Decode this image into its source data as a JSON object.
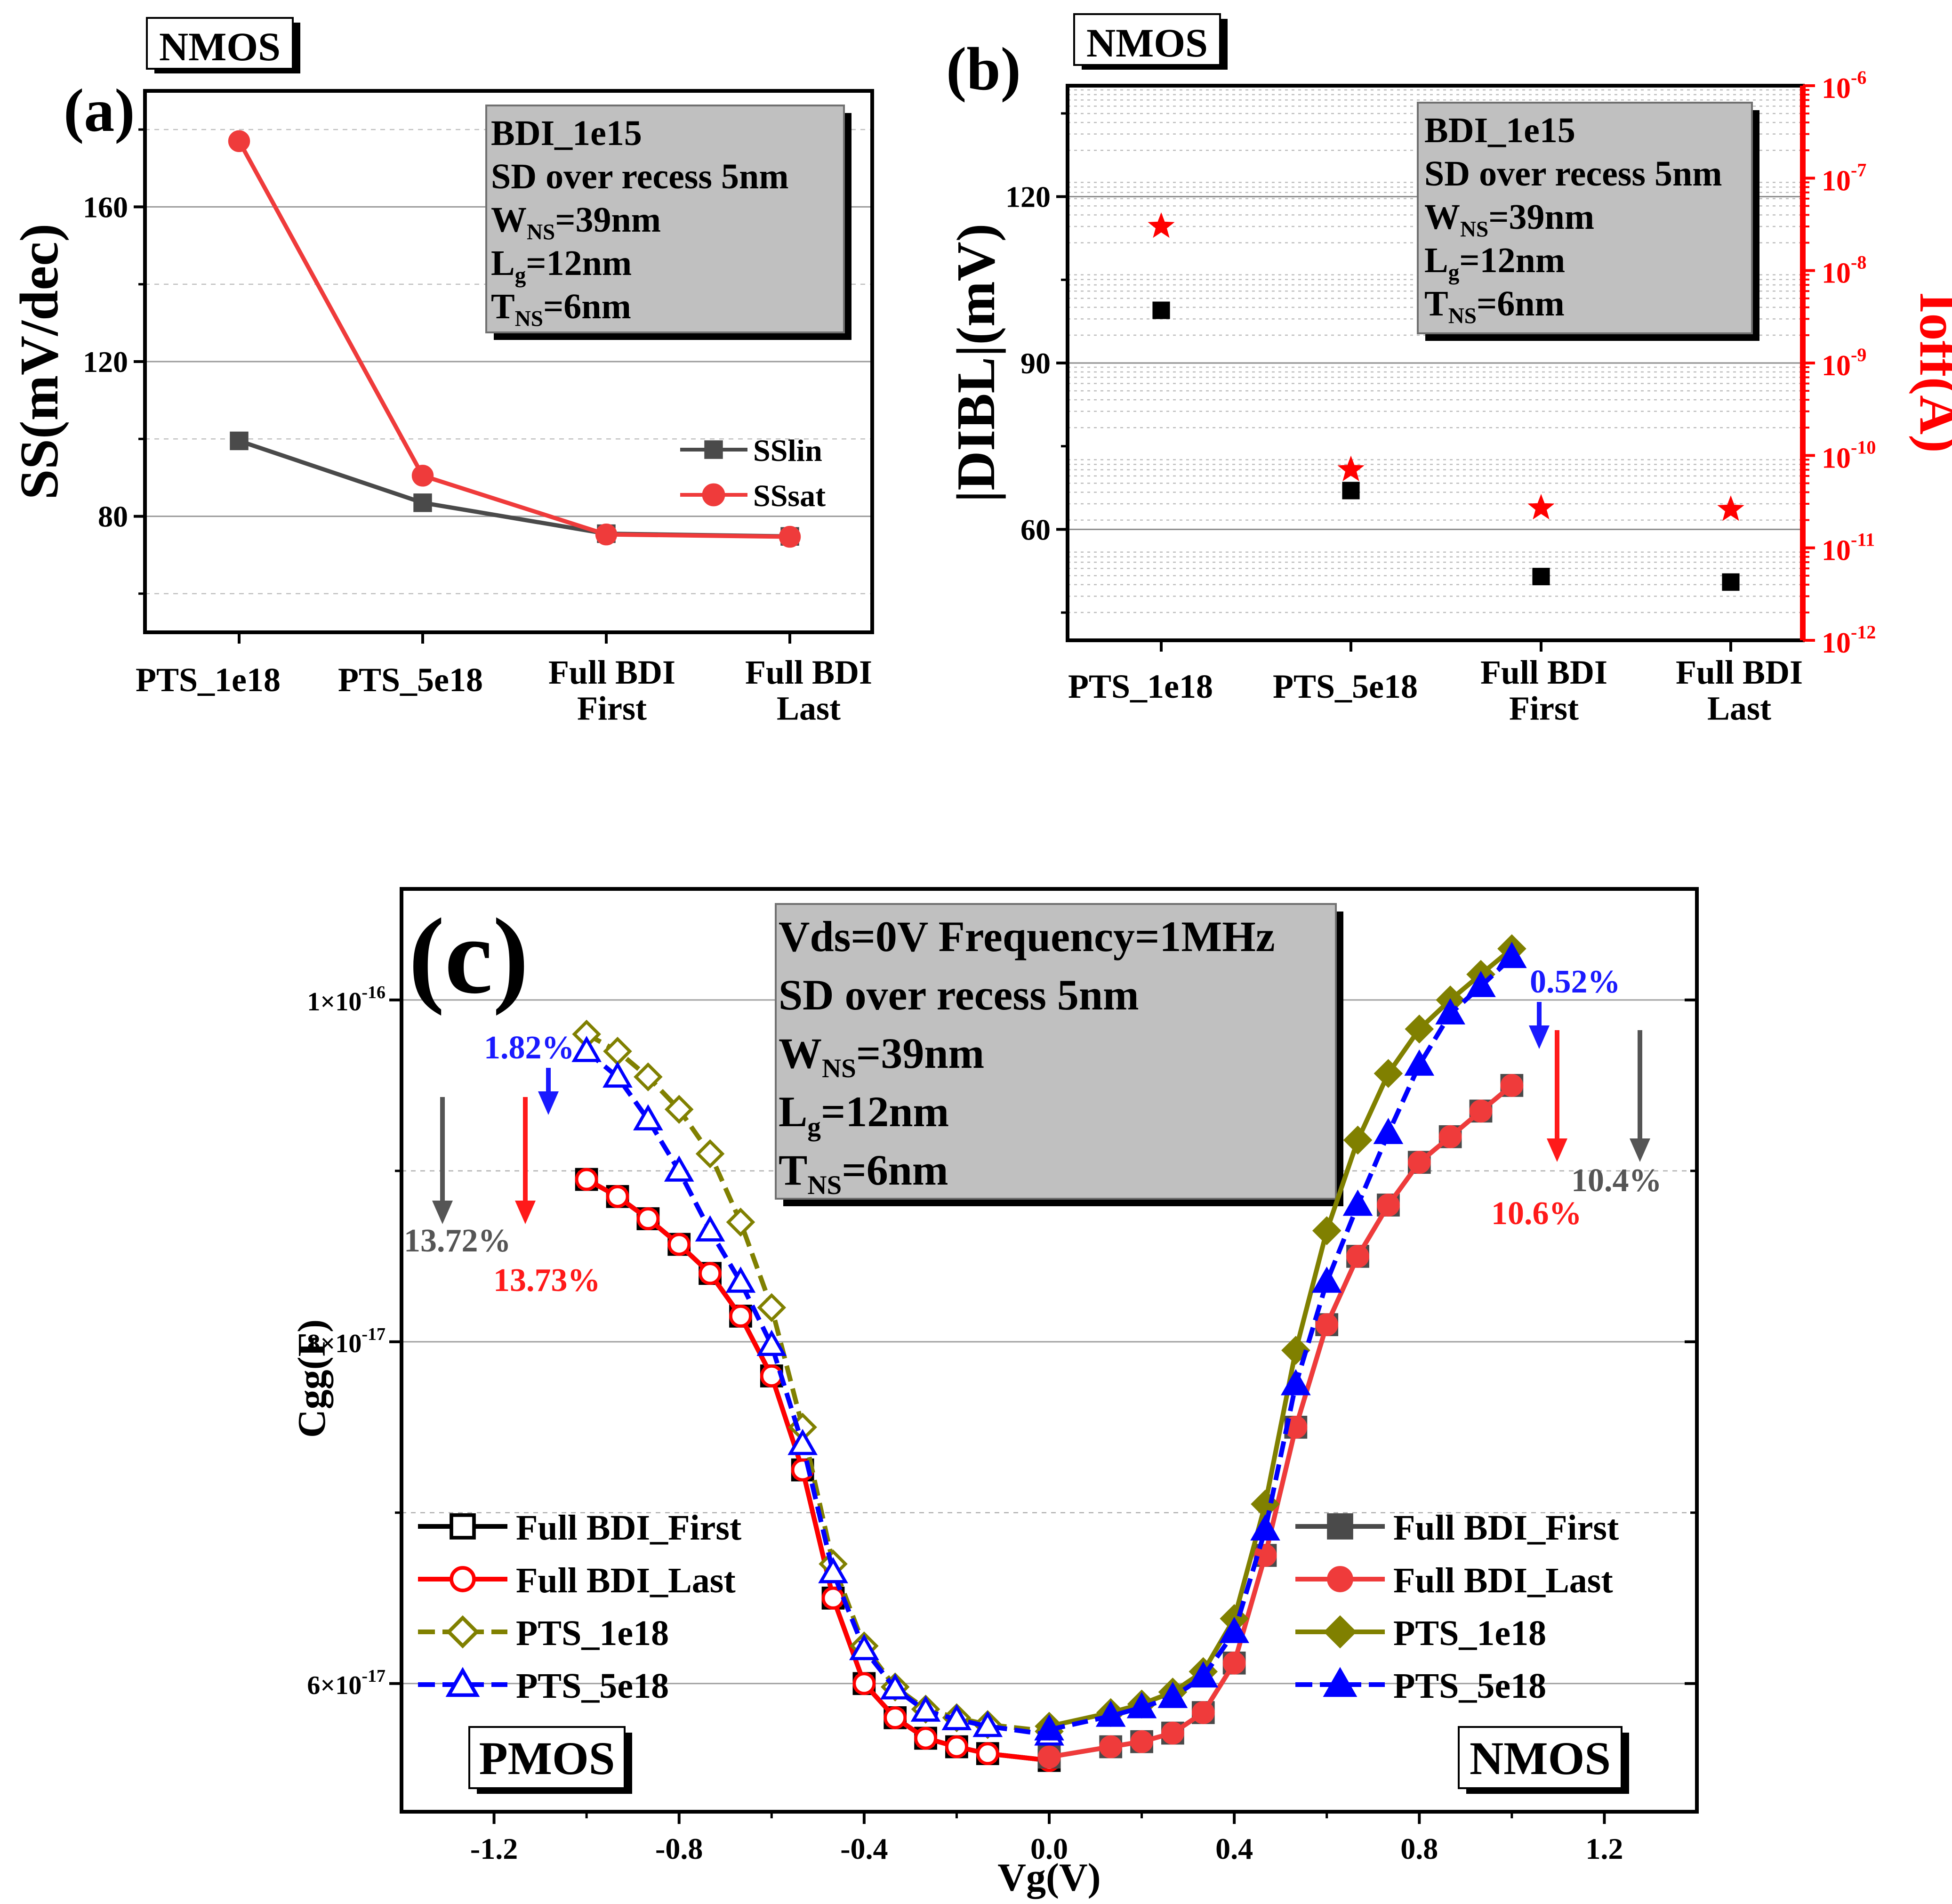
{
  "figure": {
    "panel_a": {
      "panel_label": "(a)",
      "device_tag": "NMOS",
      "info_lines": [
        {
          "main": "BDI_1e15",
          "sub": "",
          "rest": ""
        },
        {
          "main": "SD over recess 5nm",
          "sub": "",
          "rest": ""
        },
        {
          "main": "W",
          "sub": "NS",
          "rest": "=39nm"
        },
        {
          "main": "L",
          "sub": "g",
          "rest": "=12nm"
        },
        {
          "main": "T",
          "sub": "NS",
          "rest": "=6nm"
        }
      ]
    },
    "panel_b": {
      "panel_label": "(b)",
      "device_tag": "NMOS",
      "info_lines": [
        {
          "main": "BDI_1e15",
          "sub": "",
          "rest": ""
        },
        {
          "main": "SD over recess 5nm",
          "sub": "",
          "rest": ""
        },
        {
          "main": "W",
          "sub": "NS",
          "rest": "=39nm"
        },
        {
          "main": "L",
          "sub": "g",
          "rest": "=12nm"
        },
        {
          "main": "T",
          "sub": "NS",
          "rest": "=6nm"
        }
      ]
    },
    "panel_c": {
      "panel_label": "(c)",
      "left_tag": "PMOS",
      "right_tag": "NMOS",
      "info_lines": [
        {
          "main": "Vds=0V  Frequency=1MHz",
          "sub": "",
          "rest": ""
        },
        {
          "main": "SD over recess 5nm",
          "sub": "",
          "rest": ""
        },
        {
          "main": "W",
          "sub": "NS",
          "rest": "=39nm"
        },
        {
          "main": "L",
          "sub": "g",
          "rest": "=12nm"
        },
        {
          "main": "T",
          "sub": "NS",
          "rest": "=6nm"
        }
      ],
      "annotations": [
        {
          "text": "1.82%",
          "color": "#1a1aff"
        },
        {
          "text": "13.72%",
          "color": "#555555"
        },
        {
          "text": "13.73%",
          "color": "#ff1a1a"
        },
        {
          "text": "0.52%",
          "color": "#1a1aff"
        },
        {
          "text": "10.4%",
          "color": "#555555"
        },
        {
          "text": "10.6%",
          "color": "#ff1a1a"
        }
      ]
    }
  },
  "chart_data": [
    {
      "type": "line",
      "categories": [
        "PTS_1e18",
        "PTS_5e18",
        "Full BDI\nFirst",
        "Full BDI\nLast"
      ],
      "ylabel": "SS(mV/dec)",
      "ylim": [
        50,
        190
      ],
      "yticks": [
        80,
        120,
        160
      ],
      "grid": true,
      "legend_position": "right",
      "series": [
        {
          "name": "SSlin",
          "values": [
            99.5,
            83.5,
            75.5,
            74.8
          ],
          "color": "#4a4a4a",
          "marker": "square"
        },
        {
          "name": "SSsat",
          "values": [
            177,
            90.5,
            75.3,
            74.7
          ],
          "color": "#ef3b3b",
          "marker": "circle"
        }
      ]
    },
    {
      "type": "scatter",
      "categories": [
        "PTS_1e18",
        "PTS_5e18",
        "Full BDI\nFirst",
        "Full BDI\nLast"
      ],
      "ylabel": "|DIBL|(mV)",
      "ylim": [
        40,
        140
      ],
      "yticks": [
        60,
        90,
        120
      ],
      "y2label": "Ioff(A)",
      "y2scale": "log",
      "y2lim": [
        1e-12,
        1e-06
      ],
      "y2ticks": [
        {
          "value": 1e-12,
          "base": "10",
          "exp": "-12"
        },
        {
          "value": 1e-11,
          "base": "10",
          "exp": "-11"
        },
        {
          "value": 1e-10,
          "base": "10",
          "exp": "-10"
        },
        {
          "value": 1e-09,
          "base": "10",
          "exp": "-9"
        },
        {
          "value": 1e-08,
          "base": "10",
          "exp": "-8"
        },
        {
          "value": 1e-07,
          "base": "10",
          "exp": "-7"
        },
        {
          "value": 1e-06,
          "base": "10",
          "exp": "-6"
        }
      ],
      "grid": true,
      "series": [
        {
          "axis": "left",
          "values": [
            99.5,
            67,
            51.5,
            50.5
          ],
          "color": "#000000",
          "marker": "square"
        },
        {
          "axis": "right",
          "values": [
            3e-08,
            7e-11,
            2.7e-11,
            2.6e-11
          ],
          "color": "#ff0000",
          "marker": "star"
        }
      ]
    },
    {
      "type": "line",
      "xlabel": "Vg(V)",
      "ylabel": "Cgg(F)",
      "xlim": [
        -1.4,
        1.4
      ],
      "xticks": [
        "-1.2",
        "-0.8",
        "-0.4",
        "0.0",
        "0.4",
        "0.8",
        "1.2"
      ],
      "ylim": [
        5.25e-17,
        1.065e-16
      ],
      "yticks": [
        {
          "value": 6e-17,
          "mant": "6×10",
          "exp": "-17"
        },
        {
          "value": 8e-17,
          "mant": "8×10",
          "exp": "-17"
        },
        {
          "value": 1e-16,
          "mant": "1×10",
          "exp": "-16"
        }
      ],
      "grid": true,
      "legend_left_position": "lower-left",
      "legend_right_position": "lower-right",
      "legend_left": [
        {
          "name": "Full BDI_First",
          "color": "#000000",
          "marker": "square",
          "filled": false,
          "dash": false
        },
        {
          "name": "Full BDI_Last",
          "color": "#ff0000",
          "marker": "circle",
          "filled": false,
          "dash": false
        },
        {
          "name": "PTS_1e18",
          "color": "#808000",
          "marker": "diamond",
          "filled": false,
          "dash": true
        },
        {
          "name": "PTS_5e18",
          "color": "#0000ff",
          "marker": "triangle",
          "filled": false,
          "dash": true
        }
      ],
      "legend_right": [
        {
          "name": "Full BDI_First",
          "color": "#4a4a4a",
          "marker": "square",
          "filled": true,
          "dash": false
        },
        {
          "name": "Full BDI_Last",
          "color": "#ef3b3b",
          "marker": "circle",
          "filled": true,
          "dash": false
        },
        {
          "name": "PTS_1e18",
          "color": "#808000",
          "marker": "diamond",
          "filled": true,
          "dash": false
        },
        {
          "name": "PTS_5e18",
          "color": "#0000ff",
          "marker": "triangle",
          "filled": true,
          "dash": true
        }
      ],
      "series": [
        {
          "name": "Full BDI_First",
          "side": "PMOS",
          "color": "#000000",
          "marker": "square",
          "filled": false,
          "dash": false,
          "x": [
            -1.0,
            -0.933,
            -0.867,
            -0.8,
            -0.733,
            -0.667,
            -0.6,
            -0.533,
            -0.467,
            -0.4,
            -0.333,
            -0.267,
            -0.2,
            -0.133,
            0.0
          ],
          "y": [
            8.95e-17,
            8.85e-17,
            8.72e-17,
            8.57e-17,
            8.4e-17,
            8.15e-17,
            7.8e-17,
            7.25e-17,
            6.5e-17,
            6e-17,
            5.8e-17,
            5.68e-17,
            5.63e-17,
            5.59e-17,
            5.55e-17
          ]
        },
        {
          "name": "Full BDI_Last",
          "side": "PMOS",
          "color": "#ff0000",
          "marker": "circle",
          "filled": false,
          "dash": false,
          "x": [
            -1.0,
            -0.933,
            -0.867,
            -0.8,
            -0.733,
            -0.667,
            -0.6,
            -0.533,
            -0.467,
            -0.4,
            -0.333,
            -0.267,
            -0.2,
            -0.133,
            0.0
          ],
          "y": [
            8.95e-17,
            8.85e-17,
            8.72e-17,
            8.57e-17,
            8.4e-17,
            8.15e-17,
            7.8e-17,
            7.25e-17,
            6.5e-17,
            6e-17,
            5.8e-17,
            5.68e-17,
            5.63e-17,
            5.59e-17,
            5.55e-17
          ]
        },
        {
          "name": "PTS_1e18",
          "side": "PMOS",
          "color": "#808000",
          "marker": "diamond",
          "filled": false,
          "dash": true,
          "x": [
            -1.0,
            -0.933,
            -0.867,
            -0.8,
            -0.733,
            -0.667,
            -0.6,
            -0.533,
            -0.467,
            -0.4,
            -0.333,
            -0.267,
            -0.2,
            -0.133,
            0.0
          ],
          "y": [
            9.8e-17,
            9.7e-17,
            9.55e-17,
            9.36e-17,
            9.1e-17,
            8.7e-17,
            8.2e-17,
            7.5e-17,
            6.7e-17,
            6.22e-17,
            5.98e-17,
            5.85e-17,
            5.8e-17,
            5.76e-17,
            5.72e-17
          ]
        },
        {
          "name": "PTS_5e18",
          "side": "PMOS",
          "color": "#0000ff",
          "marker": "triangle",
          "filled": false,
          "dash": true,
          "x": [
            -1.0,
            -0.933,
            -0.867,
            -0.8,
            -0.733,
            -0.667,
            -0.6,
            -0.533,
            -0.467,
            -0.4,
            -0.333,
            -0.267,
            -0.2,
            -0.133,
            0.0
          ],
          "y": [
            9.7e-17,
            9.55e-17,
            9.3e-17,
            9e-17,
            8.65e-17,
            8.35e-17,
            7.98e-17,
            7.4e-17,
            6.65e-17,
            6.2e-17,
            5.97e-17,
            5.84e-17,
            5.79e-17,
            5.75e-17,
            5.7e-17
          ]
        },
        {
          "name": "Full BDI_First",
          "side": "NMOS",
          "color": "#4a4a4a",
          "marker": "square",
          "filled": true,
          "dash": false,
          "x": [
            0.0,
            0.133,
            0.2,
            0.267,
            0.333,
            0.4,
            0.467,
            0.533,
            0.6,
            0.667,
            0.733,
            0.8,
            0.867,
            0.933,
            1.0
          ],
          "y": [
            5.57e-17,
            5.63e-17,
            5.66e-17,
            5.71e-17,
            5.83e-17,
            6.12e-17,
            6.75e-17,
            7.5e-17,
            8.1e-17,
            8.5e-17,
            8.8e-17,
            9.05e-17,
            9.2e-17,
            9.35e-17,
            9.5e-17
          ]
        },
        {
          "name": "Full BDI_Last",
          "side": "NMOS",
          "color": "#ef3b3b",
          "marker": "circle",
          "filled": true,
          "dash": false,
          "x": [
            0.0,
            0.133,
            0.2,
            0.267,
            0.333,
            0.4,
            0.467,
            0.533,
            0.6,
            0.667,
            0.733,
            0.8,
            0.867,
            0.933,
            1.0
          ],
          "y": [
            5.57e-17,
            5.63e-17,
            5.66e-17,
            5.71e-17,
            5.83e-17,
            6.12e-17,
            6.75e-17,
            7.5e-17,
            8.1e-17,
            8.5e-17,
            8.8e-17,
            9.05e-17,
            9.2e-17,
            9.35e-17,
            9.5e-17
          ]
        },
        {
          "name": "PTS_1e18",
          "side": "NMOS",
          "color": "#808000",
          "marker": "diamond",
          "filled": true,
          "dash": false,
          "x": [
            0.0,
            0.133,
            0.2,
            0.267,
            0.333,
            0.4,
            0.467,
            0.533,
            0.6,
            0.667,
            0.733,
            0.8,
            0.867,
            0.933,
            1.0
          ],
          "y": [
            5.75e-17,
            5.83e-17,
            5.88e-17,
            5.95e-17,
            6.07e-17,
            6.38e-17,
            7.05e-17,
            7.95e-17,
            8.65e-17,
            9.18e-17,
            9.57e-17,
            9.83e-17,
            1e-16,
            1.015e-16,
            1.03e-16
          ]
        },
        {
          "name": "PTS_5e18",
          "side": "NMOS",
          "color": "#0000ff",
          "marker": "triangle",
          "filled": true,
          "dash": true,
          "x": [
            0.0,
            0.133,
            0.2,
            0.267,
            0.333,
            0.4,
            0.467,
            0.533,
            0.6,
            0.667,
            0.733,
            0.8,
            0.867,
            0.933,
            1.0
          ],
          "y": [
            5.73e-17,
            5.81e-17,
            5.86e-17,
            5.92e-17,
            6.04e-17,
            6.3e-17,
            6.9e-17,
            7.75e-17,
            8.35e-17,
            8.8e-17,
            9.22e-17,
            9.62e-17,
            9.92e-17,
            1.008e-16,
            1.025e-16
          ]
        }
      ]
    }
  ]
}
